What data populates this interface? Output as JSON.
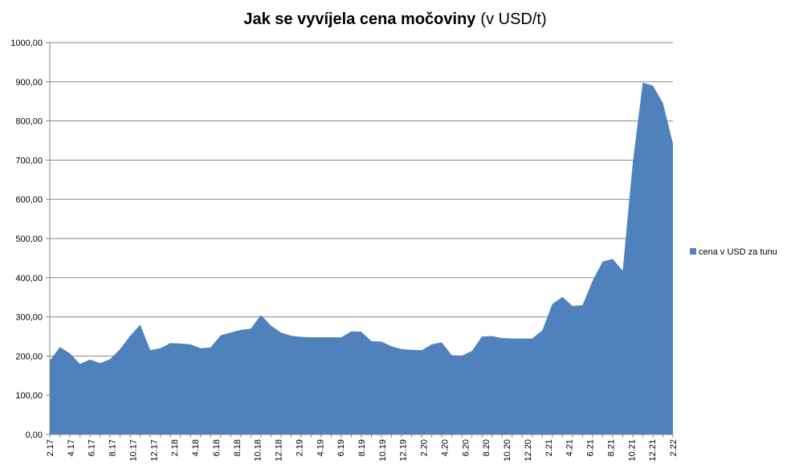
{
  "chart_data": {
    "type": "area",
    "title_bold": "Jak se vyvíjela cena močoviny",
    "title_rest": "(v USD/t)",
    "legend_position": "right",
    "grid": true,
    "ylim": [
      0,
      1000
    ],
    "y_ticks": [
      "0,00",
      "100,00",
      "200,00",
      "300,00",
      "400,00",
      "500,00",
      "600,00",
      "700,00",
      "800,00",
      "900,00",
      "1000,00"
    ],
    "x_ticks": [
      "2.17",
      "4.17",
      "6.17",
      "8.17",
      "10.17",
      "12.17",
      "2.18",
      "4.18",
      "6.18",
      "8.18",
      "10.18",
      "12.18",
      "2.19",
      "4.19",
      "6.19",
      "8.19",
      "10.19",
      "12.19",
      "2.20",
      "4.20",
      "6.20",
      "8.20",
      "10.20",
      "12.20",
      "2.21",
      "4.21",
      "6.21",
      "8.21",
      "10.21",
      "12.21",
      "2.22"
    ],
    "series": [
      {
        "name": "cena v USD za tunu",
        "color": "#4F81BD",
        "values": [
          188,
          223,
          207,
          180,
          191,
          182,
          192,
          218,
          252,
          280,
          215,
          220,
          233,
          232,
          230,
          220,
          222,
          253,
          260,
          267,
          270,
          305,
          278,
          260,
          252,
          249,
          248,
          248,
          248,
          248,
          263,
          262,
          238,
          237,
          225,
          218,
          216,
          215,
          230,
          235,
          202,
          201,
          213,
          250,
          251,
          246,
          245,
          245,
          245,
          265,
          333,
          351,
          328,
          330,
          392,
          441,
          448,
          418,
          693,
          898,
          890,
          846,
          742
        ]
      }
    ]
  }
}
